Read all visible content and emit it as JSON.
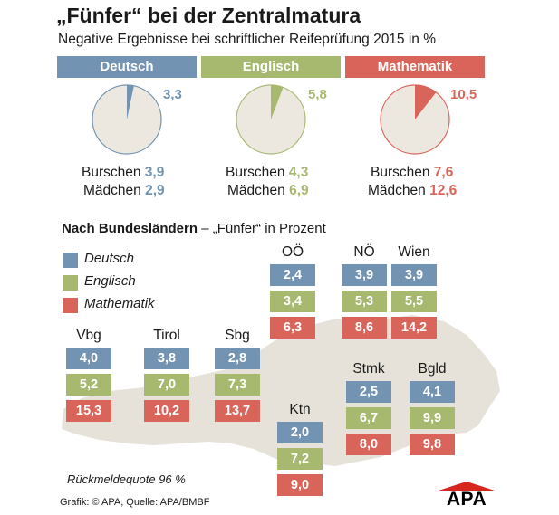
{
  "title": "„Fünfer“ bei der Zentralmatura",
  "subtitle": "Negative Ergebnisse bei schriftlicher Reifeprüfung 2015 in %",
  "colors": {
    "deutsch": "#7393b3",
    "englisch": "#a7b96f",
    "mathematik": "#d9645a",
    "pie_bg": "#ece8df",
    "map": "#e6e2d9"
  },
  "pies": [
    {
      "subject": "Deutsch",
      "label_total": "3,3",
      "burschen_label": "Burschen",
      "burschen_value": "3,9",
      "maedchen_label": "Mädchen",
      "maedchen_value": "2,9"
    },
    {
      "subject": "Englisch",
      "label_total": "5,8",
      "burschen_label": "Burschen",
      "burschen_value": "4,3",
      "maedchen_label": "Mädchen",
      "maedchen_value": "6,9"
    },
    {
      "subject": "Mathematik",
      "label_total": "10,5",
      "burschen_label": "Burschen",
      "burschen_value": "7,6",
      "maedchen_label": "Mädchen",
      "maedchen_value": "12,6"
    }
  ],
  "section": {
    "title_bold": "Nach Bundesländern",
    "title_rest": " – „Fünfer“ in Prozent"
  },
  "legend": [
    "Deutsch",
    "Englisch",
    "Mathematik"
  ],
  "footer": {
    "quote": "Rückmeldequote 96 %",
    "credit": "Grafik: © APA, Quelle: APA/BMBF",
    "logo": "APA"
  },
  "chart_data": [
    {
      "type": "pie",
      "title": "Negative Ergebnisse bei schriftlicher Reifeprüfung 2015 in %",
      "series": [
        {
          "name": "Deutsch",
          "value": 3.3,
          "burschen": 3.9,
          "maedchen": 2.9
        },
        {
          "name": "Englisch",
          "value": 5.8,
          "burschen": 4.3,
          "maedchen": 6.9
        },
        {
          "name": "Mathematik",
          "value": 10.5,
          "burschen": 7.6,
          "maedchen": 12.6
        }
      ]
    },
    {
      "type": "table",
      "title": "Nach Bundesländern – „Fünfer“ in Prozent",
      "columns": [
        "Deutsch",
        "Englisch",
        "Mathematik"
      ],
      "regions": [
        {
          "name": "Vbg",
          "values": [
            "4,0",
            "5,2",
            "15,3"
          ]
        },
        {
          "name": "Tirol",
          "values": [
            "3,8",
            "7,0",
            "10,2"
          ]
        },
        {
          "name": "Sbg",
          "values": [
            "2,8",
            "7,3",
            "13,7"
          ]
        },
        {
          "name": "OÖ",
          "values": [
            "2,4",
            "3,4",
            "6,3"
          ]
        },
        {
          "name": "NÖ",
          "values": [
            "3,9",
            "5,3",
            "8,6"
          ]
        },
        {
          "name": "Wien",
          "values": [
            "3,9",
            "5,5",
            "14,2"
          ]
        },
        {
          "name": "Ktn",
          "values": [
            "2,0",
            "7,2",
            "9,0"
          ]
        },
        {
          "name": "Stmk",
          "values": [
            "2,5",
            "6,7",
            "8,0"
          ]
        },
        {
          "name": "Bgld",
          "values": [
            "4,1",
            "9,9",
            "9,8"
          ]
        }
      ]
    }
  ]
}
